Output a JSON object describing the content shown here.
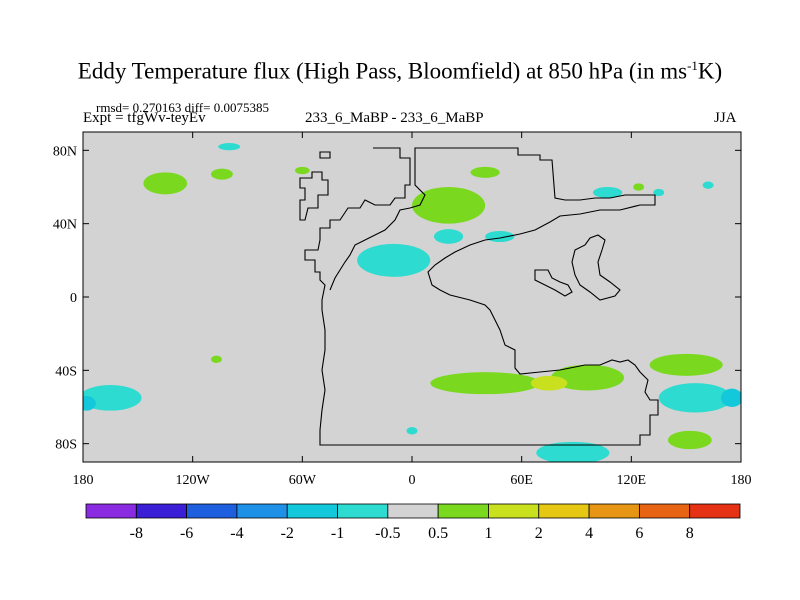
{
  "title": {
    "main": "Eddy Temperature flux (High Pass, Bloomfield) at 850 hPa (in ms",
    "sup": "-1",
    "end": "K)"
  },
  "stats": "rmsd= 0.270163 diff= 0.0075385",
  "experiment": "Expt = tfgWv-teyEv",
  "center_label": "233_6_MaBP - 233_6_MaBP",
  "season": "JJA",
  "colors": {
    "background": "#ffffff",
    "plot_fill": "#d3d3d3",
    "coast": "#000000"
  },
  "chart_data": {
    "type": "heatmap",
    "title": "Eddy Temperature flux (High Pass, Bloomfield) at 850 hPa (in ms-1K)",
    "projection": "cylindrical-equidistant",
    "xlim": [
      -180,
      180
    ],
    "ylim": [
      -90,
      90
    ],
    "x_ticks": [
      -180,
      -120,
      -60,
      0,
      60,
      120,
      180
    ],
    "x_tick_labels": [
      "180",
      "120W",
      "60W",
      "0",
      "60E",
      "120E",
      "180"
    ],
    "y_ticks": [
      80,
      40,
      0,
      -40,
      -80
    ],
    "y_tick_labels": [
      "80N",
      "40N",
      "0",
      "40S",
      "80S"
    ],
    "colorbar": {
      "levels": [
        "-8",
        "-6",
        "-4",
        "-2",
        "-1",
        "-0.5",
        "0.5",
        "1",
        "2",
        "4",
        "6",
        "8"
      ],
      "colors": [
        "#8a2be2",
        "#3b1fd6",
        "#1e5fe0",
        "#1e90e6",
        "#14c8dc",
        "#2ddbd0",
        "#d3d3d3",
        "#7ad91e",
        "#c8e01e",
        "#e6c814",
        "#e69614",
        "#e66414",
        "#e63214"
      ]
    },
    "regions": [
      {
        "lon": -135,
        "lat": 62,
        "rx": 12,
        "ry": 6,
        "level": "1",
        "color": "#7ad91e"
      },
      {
        "lon": -104,
        "lat": 67,
        "rx": 6,
        "ry": 3,
        "level": "1",
        "color": "#7ad91e"
      },
      {
        "lon": -100,
        "lat": 82,
        "rx": 6,
        "ry": 2,
        "level": "-1",
        "color": "#2ddbd0"
      },
      {
        "lon": -60,
        "lat": 69,
        "rx": 4,
        "ry": 2,
        "level": "1",
        "color": "#7ad91e"
      },
      {
        "lon": -10,
        "lat": 20,
        "rx": 20,
        "ry": 9,
        "level": "-1",
        "color": "#2ddbd0"
      },
      {
        "lon": 20,
        "lat": 50,
        "rx": 20,
        "ry": 10,
        "level": "1",
        "color": "#7ad91e"
      },
      {
        "lon": 20,
        "lat": 33,
        "rx": 8,
        "ry": 4,
        "level": "-1",
        "color": "#2ddbd0"
      },
      {
        "lon": 48,
        "lat": 33,
        "rx": 8,
        "ry": 3,
        "level": "-1",
        "color": "#2ddbd0"
      },
      {
        "lon": 40,
        "lat": 68,
        "rx": 8,
        "ry": 3,
        "level": "1",
        "color": "#7ad91e"
      },
      {
        "lon": 107,
        "lat": 57,
        "rx": 8,
        "ry": 3,
        "level": "-1",
        "color": "#2ddbd0"
      },
      {
        "lon": 124,
        "lat": 60,
        "rx": 3,
        "ry": 2,
        "level": "1",
        "color": "#7ad91e"
      },
      {
        "lon": 135,
        "lat": 57,
        "rx": 3,
        "ry": 2,
        "level": "-1",
        "color": "#2ddbd0"
      },
      {
        "lon": 162,
        "lat": 61,
        "rx": 3,
        "ry": 2,
        "level": "-1",
        "color": "#2ddbd0"
      },
      {
        "lon": -165,
        "lat": -55,
        "rx": 17,
        "ry": 7,
        "level": "-1",
        "color": "#2ddbd0"
      },
      {
        "lon": -178,
        "lat": -58,
        "rx": 5,
        "ry": 4,
        "level": "-2",
        "color": "#14c8dc"
      },
      {
        "lon": -107,
        "lat": -34,
        "rx": 3,
        "ry": 2,
        "level": "1",
        "color": "#7ad91e"
      },
      {
        "lon": 40,
        "lat": -47,
        "rx": 30,
        "ry": 6,
        "level": "1",
        "color": "#7ad91e"
      },
      {
        "lon": 96,
        "lat": -44,
        "rx": 20,
        "ry": 7,
        "level": "1",
        "color": "#7ad91e"
      },
      {
        "lon": 75,
        "lat": -47,
        "rx": 10,
        "ry": 4,
        "level": "2",
        "color": "#c8e01e"
      },
      {
        "lon": 150,
        "lat": -37,
        "rx": 20,
        "ry": 6,
        "level": "1",
        "color": "#7ad91e"
      },
      {
        "lon": 155,
        "lat": -55,
        "rx": 20,
        "ry": 8,
        "level": "-1",
        "color": "#2ddbd0"
      },
      {
        "lon": 175,
        "lat": -55,
        "rx": 6,
        "ry": 5,
        "level": "-2",
        "color": "#14c8dc"
      },
      {
        "lon": 152,
        "lat": -78,
        "rx": 12,
        "ry": 5,
        "level": "1",
        "color": "#7ad91e"
      },
      {
        "lon": 0,
        "lat": -73,
        "rx": 3,
        "ry": 2,
        "level": "-1",
        "color": "#2ddbd0"
      },
      {
        "lon": 88,
        "lat": -85,
        "rx": 20,
        "ry": 6,
        "level": "-1",
        "color": "#2ddbd0"
      }
    ]
  }
}
